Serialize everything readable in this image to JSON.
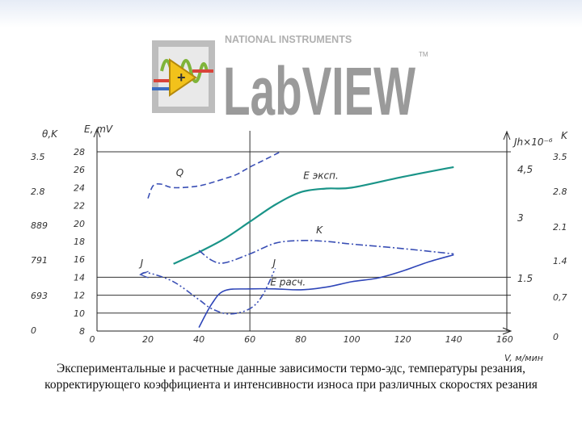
{
  "brand": {
    "company": "NATIONAL INSTRUMENTS",
    "product": "LabVIEW",
    "tm": "TM"
  },
  "chart_data": {
    "type": "line",
    "x": {
      "label": "V, м/мин",
      "ticks": [
        20,
        40,
        60,
        80,
        100,
        120,
        140,
        160
      ],
      "range": [
        0,
        160
      ],
      "origin_label": "0"
    },
    "y_left_outer": {
      "label": "θ,K",
      "ticks": [
        "0",
        "693",
        "791",
        "889",
        "2.8",
        "3.5"
      ]
    },
    "y_left": {
      "label": "E, mV",
      "ticks": [
        8,
        10,
        12,
        14,
        16,
        18,
        20,
        22,
        24,
        26,
        28
      ],
      "range": [
        8,
        28
      ]
    },
    "y_right_inner": {
      "label": "Jh×10⁻⁶",
      "ticks": [
        "1.5",
        "3",
        "4,5"
      ]
    },
    "y_right_outer": {
      "label": "K",
      "ticks": [
        "0",
        "0,7",
        "1.4",
        "2.1",
        "2.8",
        "3.5"
      ]
    },
    "grid": {
      "horizontal_at_E": [
        10,
        12,
        14,
        28
      ],
      "vertical_at_V": [
        60
      ]
    },
    "series": [
      {
        "name": "Q",
        "style": "dashed",
        "color": "#3a4fb5",
        "x": [
          20,
          22,
          25,
          30,
          40,
          50,
          55,
          60,
          65,
          72
        ],
        "y": [
          22.8,
          24.2,
          24.4,
          24,
          24.2,
          25,
          25.5,
          26.3,
          27,
          28
        ]
      },
      {
        "name": "E эксп.",
        "style": "solid",
        "color": "#1a9488",
        "x": [
          30,
          40,
          50,
          60,
          70,
          80,
          90,
          100,
          120,
          140
        ],
        "y": [
          15.5,
          16.8,
          18.3,
          20.2,
          22.1,
          23.5,
          23.9,
          24,
          25.2,
          26.3
        ]
      },
      {
        "name": "K",
        "style": "dashdot",
        "color": "#3a4fb5",
        "x": [
          40,
          45,
          50,
          60,
          70,
          80,
          90,
          100,
          120,
          140
        ],
        "y": [
          17,
          15.9,
          15.6,
          16.6,
          17.8,
          18.1,
          18,
          17.7,
          17.2,
          16.6
        ]
      },
      {
        "name": "E расч.",
        "style": "solid",
        "color": "#2e45b8",
        "x": [
          40,
          45,
          50,
          60,
          70,
          80,
          90,
          100,
          110,
          120,
          130,
          140
        ],
        "y": [
          8.4,
          11,
          12.5,
          12.7,
          12.7,
          12.6,
          12.9,
          13.5,
          13.9,
          14.7,
          15.7,
          16.5
        ]
      },
      {
        "name": "J",
        "style": "dashdotdot",
        "color": "#3a4fb5",
        "x": [
          17,
          20,
          30,
          40,
          45,
          52,
          60,
          65,
          70
        ],
        "y": [
          14.3,
          14.5,
          13.5,
          11.5,
          10.5,
          9.9,
          10.5,
          12,
          15
        ]
      }
    ],
    "curve_labels": [
      {
        "text": "Q",
        "x": 31,
        "y": 25.3
      },
      {
        "text": "Е эксп.",
        "x": 81,
        "y": 25
      },
      {
        "text": "K",
        "x": 86,
        "y": 18.9
      },
      {
        "text": "Е расч.",
        "x": 68,
        "y": 13.1
      },
      {
        "text": "J",
        "x": 17,
        "y": 15.2
      },
      {
        "text": "J",
        "x": 69,
        "y": 15.2
      }
    ]
  },
  "caption": "Экспериментальные и расчетные данные зависимости термо-эдс, температуры резания, корректирующего коэффициента и интенсивности износа при различных скоростях резания"
}
